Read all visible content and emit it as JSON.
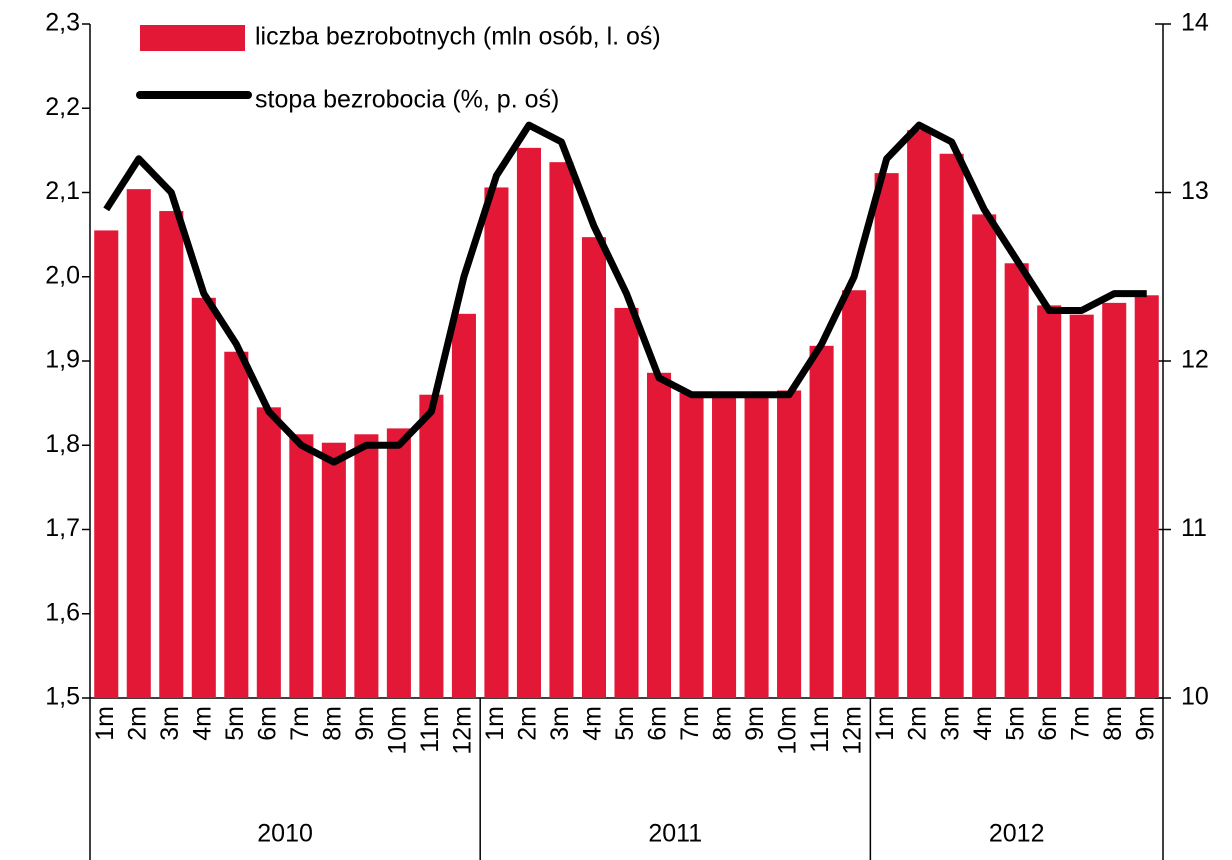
{
  "chart_data": {
    "type": "bar_line",
    "categories": [
      "1m",
      "2m",
      "3m",
      "4m",
      "5m",
      "6m",
      "7m",
      "8m",
      "9m",
      "10m",
      "11m",
      "12m",
      "1m",
      "2m",
      "3m",
      "4m",
      "5m",
      "6m",
      "7m",
      "8m",
      "9m",
      "10m",
      "11m",
      "12m",
      "1m",
      "2m",
      "3m",
      "4m",
      "5m",
      "6m",
      "7m",
      "8m",
      "9m"
    ],
    "groups": [
      "2010",
      "2011",
      "2012"
    ],
    "series": [
      {
        "name": "liczba bezrobotnych (mln osób, l. oś)",
        "type": "bar",
        "color": "#e31837",
        "axis": "y",
        "values": [
          2.055,
          2.104,
          2.078,
          1.975,
          1.911,
          1.845,
          1.813,
          1.803,
          1.813,
          1.82,
          1.86,
          1.956,
          2.106,
          2.153,
          2.136,
          2.047,
          1.963,
          1.886,
          1.862,
          1.858,
          1.86,
          1.865,
          1.918,
          1.984,
          2.123,
          2.174,
          2.146,
          2.074,
          2.016,
          1.966,
          1.955,
          1.969,
          1.978
        ]
      },
      {
        "name": "stopa bezrobocia (%, p. oś)",
        "type": "line",
        "color": "#000000",
        "axis": "y2",
        "values": [
          12.9,
          13.2,
          13.0,
          12.4,
          12.1,
          11.7,
          11.5,
          11.4,
          11.5,
          11.5,
          11.7,
          12.5,
          13.1,
          13.4,
          13.3,
          12.8,
          12.4,
          11.9,
          11.8,
          11.8,
          11.8,
          11.8,
          12.1,
          12.5,
          13.2,
          13.4,
          13.3,
          12.9,
          12.6,
          12.3,
          12.3,
          12.4,
          12.4
        ]
      }
    ],
    "ylim": [
      1.5,
      2.3
    ],
    "yticks": [
      {
        "value": 1.5,
        "label": "1,5"
      },
      {
        "value": 1.6,
        "label": "1,6"
      },
      {
        "value": 1.7,
        "label": "1,7"
      },
      {
        "value": 1.8,
        "label": "1,8"
      },
      {
        "value": 1.9,
        "label": "1,9"
      },
      {
        "value": 2.0,
        "label": "2,0"
      },
      {
        "value": 2.1,
        "label": "2,1"
      },
      {
        "value": 2.2,
        "label": "2,2"
      },
      {
        "value": 2.3,
        "label": "2,3"
      }
    ],
    "y2lim": [
      10,
      14
    ],
    "y2ticks": [
      10,
      11,
      12,
      13,
      14
    ]
  }
}
